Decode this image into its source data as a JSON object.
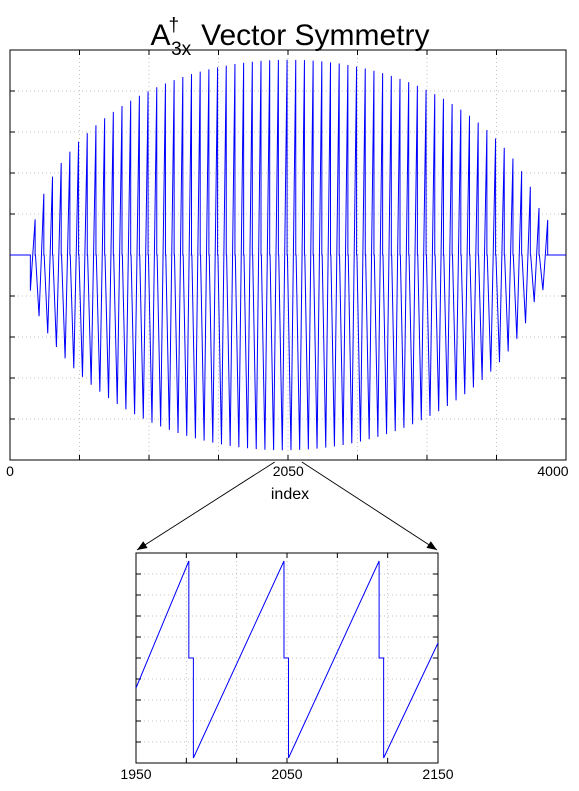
{
  "chart_data": [
    {
      "type": "line",
      "title": {
        "base": "A",
        "superscript": "†",
        "subscript": "3x",
        "text": "Vector Symmetry"
      },
      "xlabel": "index",
      "ylabel": "",
      "xlim": [
        0,
        4096
      ],
      "xticks": [
        0,
        2050,
        4000
      ],
      "ylim": [
        -1.05,
        1.05
      ],
      "grid": true,
      "legend": "none",
      "series": [
        {
          "description": "sawtooth pulses under a semi-elliptical amplitude envelope",
          "active_x_range": [
            150,
            3950
          ],
          "period": 64,
          "peak_amplitude": 1.0,
          "active_level": 0.0
        }
      ],
      "color": "#0000ff"
    },
    {
      "type": "line",
      "title": "",
      "xlabel": "",
      "ylabel": "",
      "xlim": [
        1950,
        2150
      ],
      "xticks": [
        1950,
        2050,
        2150
      ],
      "ylim": [
        -1.05,
        1.05
      ],
      "grid": true,
      "legend": "none",
      "series": [
        {
          "description": "zoomed sawtooth: linear ramps from about -1 to +1, sharp drops",
          "x": [
            1950,
            1985,
            1985,
            1988,
            1988,
            2048,
            2048,
            2051,
            2051,
            2111,
            2111,
            2114,
            2114,
            2150
          ],
          "y": [
            -0.3,
            0.97,
            0.0,
            0.0,
            -1.0,
            0.97,
            0.0,
            0.0,
            -1.0,
            0.97,
            0.0,
            0.0,
            -1.0,
            0.15
          ]
        }
      ],
      "color": "#0000ff"
    }
  ],
  "colors": {
    "series": "#0000ff",
    "frame": "#000000",
    "grid": "#b4b4b4",
    "zoom_lines": "#000000"
  }
}
